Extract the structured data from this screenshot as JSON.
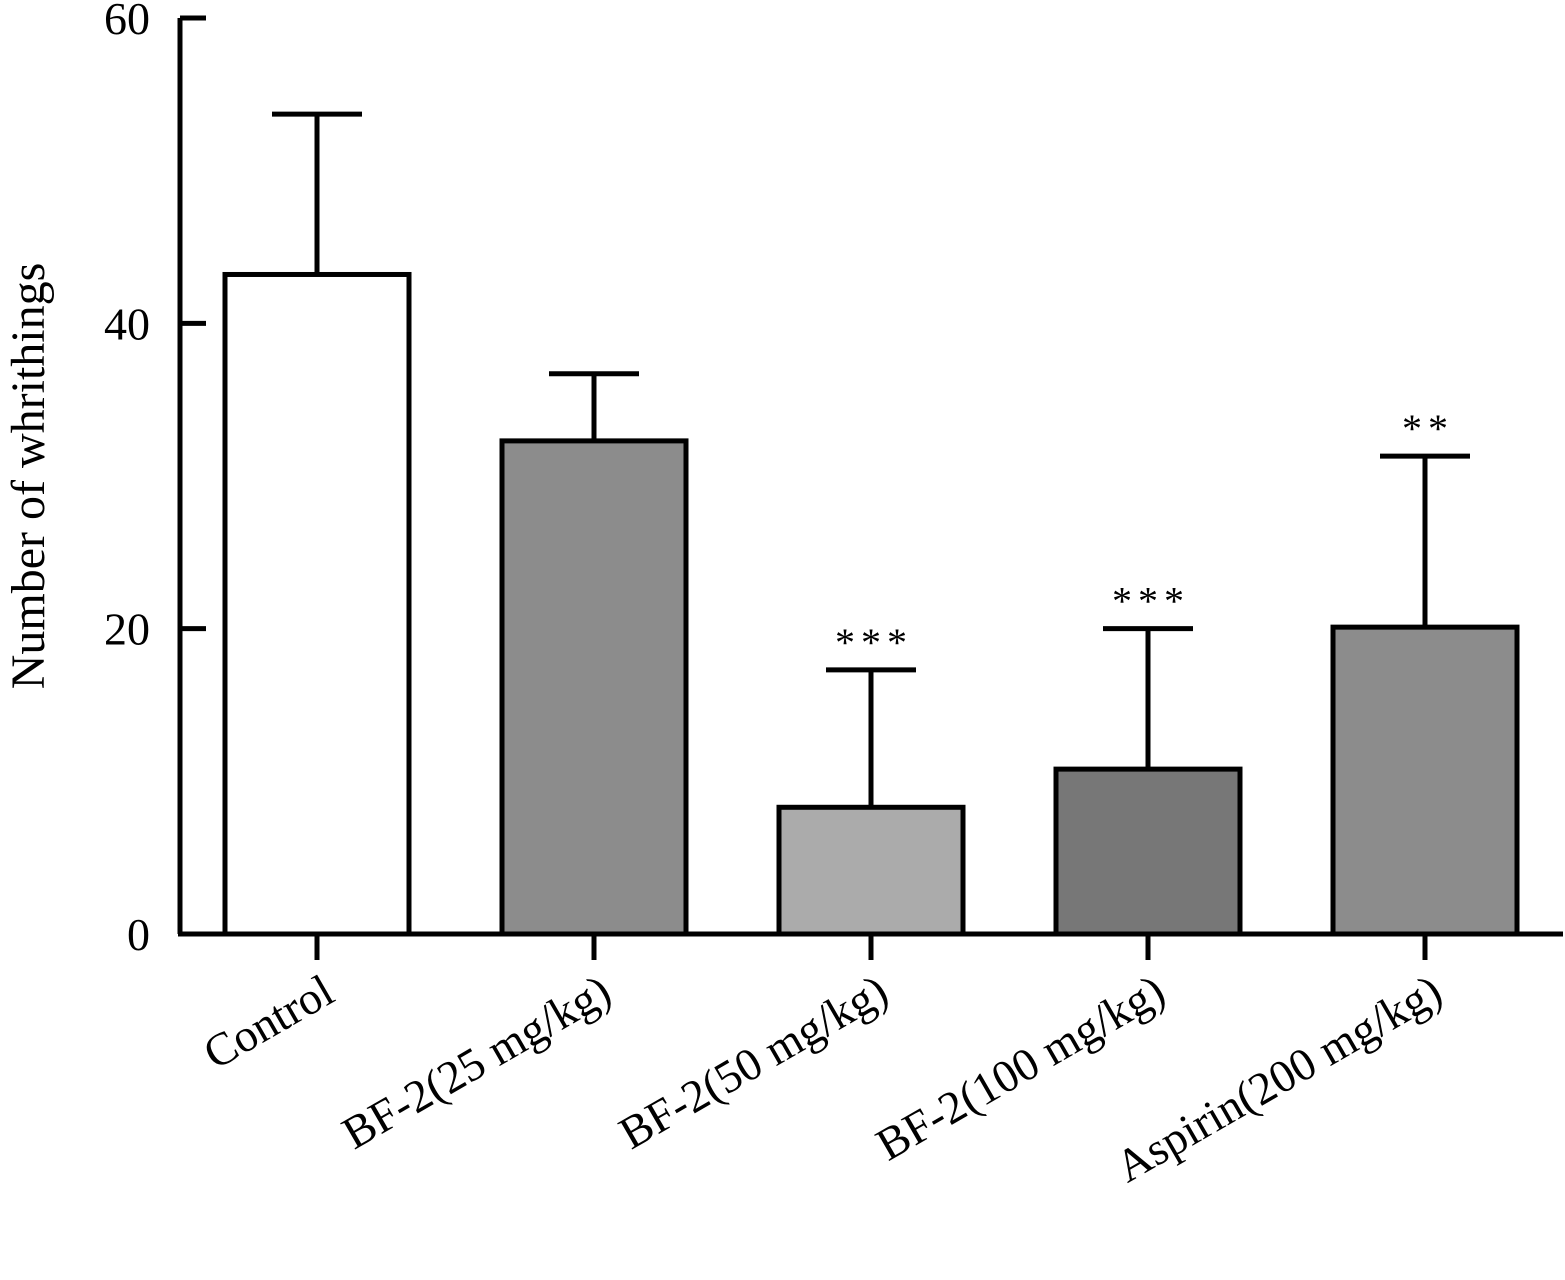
{
  "chart_data": {
    "type": "bar",
    "title": "",
    "xlabel": "",
    "ylabel": "Number of whrithings",
    "ylim": [
      0,
      60
    ],
    "yticks": [
      0,
      20,
      40,
      60
    ],
    "grid": false,
    "categories": [
      "Control",
      "BF-2(25 mg/kg)",
      "BF-2(50 mg/kg)",
      "BF-2(100 mg/kg)",
      "Aspirin(200 mg/kg)"
    ],
    "values": [
      43.2,
      32.3,
      8.3,
      10.8,
      20.1
    ],
    "error_upper": [
      10.5,
      4.4,
      9.0,
      9.2,
      11.2
    ],
    "significance": [
      "",
      "",
      "***",
      "***",
      "**"
    ],
    "bar_colors": [
      "#ffffff",
      "#8c8c8c",
      "#ababab",
      "#777777",
      "#8c8c8c"
    ],
    "edge_color": "#000000"
  }
}
